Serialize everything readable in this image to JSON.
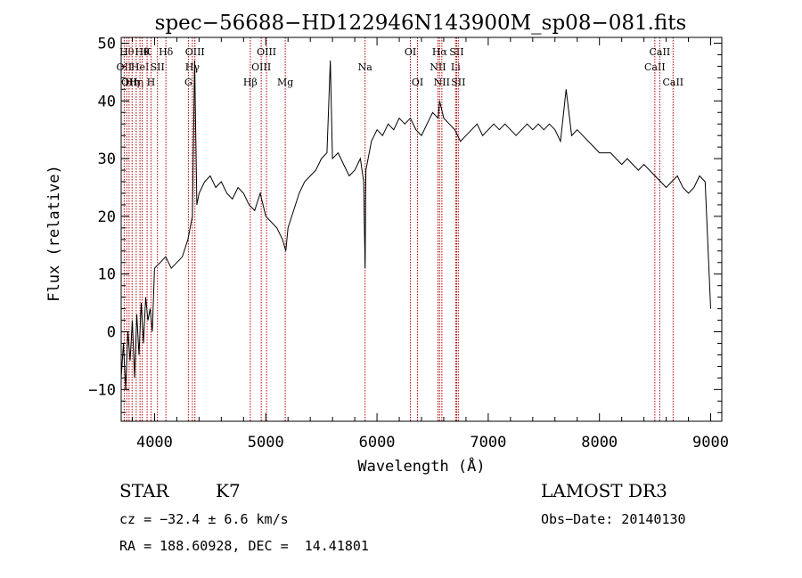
{
  "chart_data": {
    "type": "line",
    "title": "spec−56688−HD122946N143900M_sp08−081.fits",
    "xlabel": "Wavelength (Å)",
    "ylabel": "Flux (relative)",
    "xlim": [
      3700,
      9100
    ],
    "ylim": [
      -15.5,
      51
    ],
    "xticks": [
      4000,
      5000,
      6000,
      7000,
      8000,
      9000
    ],
    "xtick_labels": [
      "4000",
      "5000",
      "6000",
      "7000",
      "8000",
      "9000"
    ],
    "yticks": [
      -10,
      0,
      10,
      20,
      30,
      40,
      50
    ],
    "ytick_labels": [
      "−10",
      "0",
      "10",
      "20",
      "30",
      "40",
      "50"
    ],
    "grid": false,
    "series": [
      {
        "x": [
          3700,
          3720,
          3740,
          3760,
          3780,
          3800,
          3820,
          3840,
          3860,
          3880,
          3900,
          3920,
          3940,
          3960,
          3980,
          4000,
          4050,
          4100,
          4150,
          4200,
          4250,
          4300,
          4320,
          4340,
          4360,
          4380,
          4400,
          4450,
          4500,
          4550,
          4600,
          4650,
          4700,
          4750,
          4800,
          4850,
          4900,
          4950,
          5000,
          5050,
          5100,
          5150,
          5180,
          5200,
          5250,
          5300,
          5350,
          5400,
          5450,
          5500,
          5550,
          5580,
          5600,
          5650,
          5700,
          5750,
          5800,
          5850,
          5880,
          5893,
          5900,
          5950,
          6000,
          6050,
          6100,
          6150,
          6200,
          6250,
          6300,
          6350,
          6400,
          6450,
          6500,
          6550,
          6563,
          6600,
          6650,
          6700,
          6750,
          6800,
          6850,
          6900,
          6950,
          7000,
          7050,
          7100,
          7150,
          7200,
          7250,
          7300,
          7350,
          7400,
          7450,
          7500,
          7550,
          7600,
          7650,
          7700,
          7750,
          7800,
          7850,
          7900,
          7950,
          8000,
          8050,
          8100,
          8150,
          8200,
          8250,
          8300,
          8350,
          8400,
          8450,
          8500,
          8550,
          8600,
          8650,
          8700,
          8750,
          8800,
          8850,
          8900,
          8950,
          9000
        ],
        "y": [
          -8,
          -2,
          -10,
          0,
          -5,
          2,
          -8,
          3,
          -4,
          5,
          -2,
          6,
          2,
          4,
          0,
          11,
          12,
          13,
          11,
          12,
          13,
          16,
          18,
          20,
          47,
          22,
          24,
          26,
          27,
          25,
          26,
          24,
          23,
          25,
          24,
          22,
          21,
          24,
          20,
          19,
          18,
          16,
          14,
          18,
          21,
          24,
          26,
          27,
          28,
          30,
          31,
          47,
          30,
          31,
          29,
          27,
          28,
          30,
          26,
          11,
          28,
          33,
          35,
          34,
          36,
          35,
          37,
          36,
          37,
          35,
          34,
          36,
          38,
          37,
          40,
          37,
          36,
          35,
          33,
          34,
          35,
          36,
          34,
          35,
          36,
          35,
          36,
          35,
          34,
          35,
          36,
          35,
          36,
          35,
          36,
          35,
          33,
          42,
          34,
          35,
          34,
          33,
          32,
          31,
          31,
          31,
          30,
          29,
          30,
          29,
          28,
          29,
          28,
          27,
          26,
          25,
          26,
          27,
          25,
          24,
          25,
          27,
          26,
          4
        ]
      }
    ],
    "line_labels": [
      {
        "x": 3727,
        "label": "OII",
        "row": 2
      },
      {
        "x": 3750,
        "label": "Hθ",
        "row": 1
      },
      {
        "x": 3771,
        "label": "OII",
        "row": 3
      },
      {
        "x": 3798,
        "label": "Hη",
        "row": 3
      },
      {
        "x": 3835,
        "label": "Hη",
        "row": 3
      },
      {
        "x": 3869,
        "label": "HeI",
        "row": 2
      },
      {
        "x": 3889,
        "label": "Hθ",
        "row": 1
      },
      {
        "x": 3933,
        "label": "K",
        "row": 1
      },
      {
        "x": 3968,
        "label": "H",
        "row": 3
      },
      {
        "x": 4026,
        "label": "SII",
        "row": 2
      },
      {
        "x": 4102,
        "label": "Hδ",
        "row": 1
      },
      {
        "x": 4304,
        "label": "G",
        "row": 3
      },
      {
        "x": 4340,
        "label": "Hγ",
        "row": 2
      },
      {
        "x": 4363,
        "label": "OIII",
        "row": 1
      },
      {
        "x": 4861,
        "label": "Hβ",
        "row": 3
      },
      {
        "x": 4959,
        "label": "OIII",
        "row": 2
      },
      {
        "x": 5007,
        "label": "OIII",
        "row": 1
      },
      {
        "x": 5175,
        "label": "Mg",
        "row": 3
      },
      {
        "x": 5893,
        "label": "Na",
        "row": 2
      },
      {
        "x": 6300,
        "label": "OI",
        "row": 1
      },
      {
        "x": 6364,
        "label": "OI",
        "row": 3
      },
      {
        "x": 6548,
        "label": "NII",
        "row": 2
      },
      {
        "x": 6563,
        "label": "Hα",
        "row": 1
      },
      {
        "x": 6583,
        "label": "NII",
        "row": 3
      },
      {
        "x": 6707,
        "label": "Li",
        "row": 2
      },
      {
        "x": 6716,
        "label": "SII",
        "row": 1
      },
      {
        "x": 6731,
        "label": "SII",
        "row": 3
      },
      {
        "x": 8498,
        "label": "CaII",
        "row": 2
      },
      {
        "x": 8542,
        "label": "CaII",
        "row": 1
      },
      {
        "x": 8662,
        "label": "CaII",
        "row": 3
      }
    ]
  },
  "info": {
    "object_class": "STAR",
    "subclass": "K7",
    "survey": "LAMOST DR3",
    "redshift": "cz = −32.4 ± 6.6 km/s",
    "obs_date": "Obs−Date: 20140130",
    "coords": "RA = 188.60928, DEC =  14.41801"
  },
  "colors": {
    "spectrum": "#000000",
    "line_markers": "#b30000",
    "text": "#000000"
  }
}
